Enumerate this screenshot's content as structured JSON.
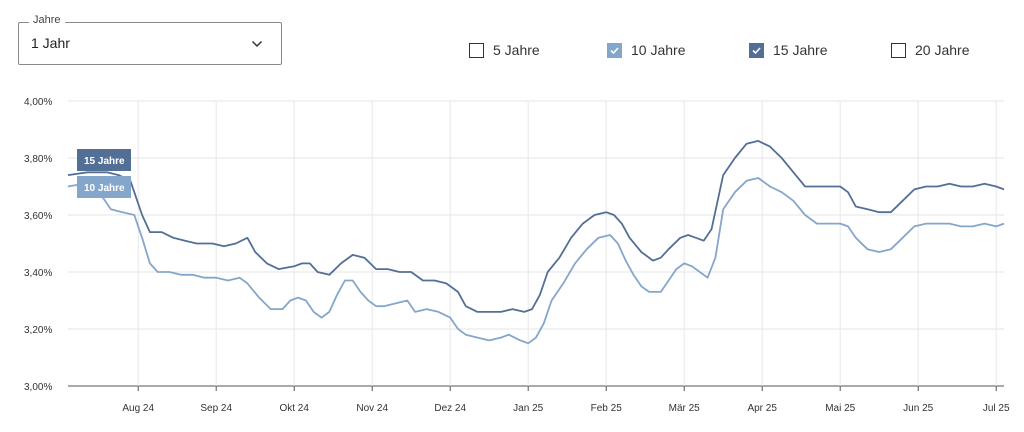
{
  "period_select": {
    "legend": "Jahre",
    "value": "1 Jahr"
  },
  "checkboxes": [
    {
      "label": "5 Jahre",
      "checked": false,
      "color": "#333333"
    },
    {
      "label": "10 Jahre",
      "checked": true,
      "color": "#85a6cb"
    },
    {
      "label": "15 Jahre",
      "checked": true,
      "color": "#546f96"
    },
    {
      "label": "20 Jahre",
      "checked": false,
      "color": "#333333"
    }
  ],
  "chart_data": {
    "type": "line",
    "title": "",
    "xlabel": "",
    "ylabel": "",
    "ylim": [
      3.0,
      4.0
    ],
    "y_ticks": [
      "3,00%",
      "3,20%",
      "3,40%",
      "3,60%",
      "3,80%",
      "4,00%"
    ],
    "x_ticks": [
      {
        "label": "Aug 24",
        "t": 0.9
      },
      {
        "label": "Sep 24",
        "t": 1.9
      },
      {
        "label": "Okt 24",
        "t": 2.9
      },
      {
        "label": "Nov 24",
        "t": 3.9
      },
      {
        "label": "Dez 24",
        "t": 4.9
      },
      {
        "label": "Jan 25",
        "t": 5.9
      },
      {
        "label": "Feb 25",
        "t": 6.9
      },
      {
        "label": "Mär 25",
        "t": 7.9
      },
      {
        "label": "Apr 25",
        "t": 8.9
      },
      {
        "label": "Mai 25",
        "t": 9.9
      },
      {
        "label": "Jun 25",
        "t": 10.9
      },
      {
        "label": "Jul 25",
        "t": 11.9
      }
    ],
    "x_range": [
      0,
      12.0
    ],
    "grid": true,
    "series": [
      {
        "name": "15 Jahre",
        "color": "#546f96",
        "points": [
          [
            0.0,
            3.74
          ],
          [
            0.25,
            3.75
          ],
          [
            0.5,
            3.75
          ],
          [
            0.65,
            3.74
          ],
          [
            0.8,
            3.72
          ],
          [
            0.95,
            3.6
          ],
          [
            1.05,
            3.54
          ],
          [
            1.2,
            3.54
          ],
          [
            1.35,
            3.52
          ],
          [
            1.5,
            3.51
          ],
          [
            1.65,
            3.5
          ],
          [
            1.85,
            3.5
          ],
          [
            2.0,
            3.49
          ],
          [
            2.15,
            3.5
          ],
          [
            2.3,
            3.52
          ],
          [
            2.4,
            3.47
          ],
          [
            2.55,
            3.43
          ],
          [
            2.7,
            3.41
          ],
          [
            2.9,
            3.42
          ],
          [
            3.0,
            3.43
          ],
          [
            3.1,
            3.43
          ],
          [
            3.2,
            3.4
          ],
          [
            3.35,
            3.39
          ],
          [
            3.5,
            3.43
          ],
          [
            3.65,
            3.46
          ],
          [
            3.8,
            3.45
          ],
          [
            3.95,
            3.41
          ],
          [
            4.1,
            3.41
          ],
          [
            4.25,
            3.4
          ],
          [
            4.4,
            3.4
          ],
          [
            4.55,
            3.37
          ],
          [
            4.7,
            3.37
          ],
          [
            4.85,
            3.36
          ],
          [
            5.0,
            3.33
          ],
          [
            5.1,
            3.28
          ],
          [
            5.25,
            3.26
          ],
          [
            5.4,
            3.26
          ],
          [
            5.55,
            3.26
          ],
          [
            5.7,
            3.27
          ],
          [
            5.85,
            3.26
          ],
          [
            5.95,
            3.27
          ],
          [
            6.05,
            3.32
          ],
          [
            6.15,
            3.4
          ],
          [
            6.3,
            3.45
          ],
          [
            6.45,
            3.52
          ],
          [
            6.6,
            3.57
          ],
          [
            6.75,
            3.6
          ],
          [
            6.9,
            3.61
          ],
          [
            7.0,
            3.6
          ],
          [
            7.1,
            3.57
          ],
          [
            7.2,
            3.52
          ],
          [
            7.35,
            3.47
          ],
          [
            7.5,
            3.44
          ],
          [
            7.6,
            3.45
          ],
          [
            7.7,
            3.48
          ],
          [
            7.85,
            3.52
          ],
          [
            7.95,
            3.53
          ],
          [
            8.05,
            3.52
          ],
          [
            8.15,
            3.51
          ],
          [
            8.25,
            3.55
          ],
          [
            8.4,
            3.74
          ],
          [
            8.55,
            3.8
          ],
          [
            8.7,
            3.85
          ],
          [
            8.85,
            3.86
          ],
          [
            9.0,
            3.84
          ],
          [
            9.15,
            3.8
          ],
          [
            9.3,
            3.75
          ],
          [
            9.45,
            3.7
          ],
          [
            9.6,
            3.7
          ],
          [
            9.75,
            3.7
          ],
          [
            9.9,
            3.7
          ],
          [
            10.0,
            3.68
          ],
          [
            10.1,
            3.63
          ],
          [
            10.25,
            3.62
          ],
          [
            10.4,
            3.61
          ],
          [
            10.55,
            3.61
          ],
          [
            10.7,
            3.65
          ],
          [
            10.85,
            3.69
          ],
          [
            11.0,
            3.7
          ],
          [
            11.15,
            3.7
          ],
          [
            11.3,
            3.71
          ],
          [
            11.45,
            3.7
          ],
          [
            11.6,
            3.7
          ],
          [
            11.75,
            3.71
          ],
          [
            11.9,
            3.7
          ],
          [
            12.0,
            3.69
          ]
        ]
      },
      {
        "name": "10 Jahre",
        "color": "#85a6cb",
        "points": [
          [
            0.0,
            3.7
          ],
          [
            0.2,
            3.71
          ],
          [
            0.4,
            3.68
          ],
          [
            0.55,
            3.62
          ],
          [
            0.7,
            3.61
          ],
          [
            0.85,
            3.6
          ],
          [
            0.95,
            3.52
          ],
          [
            1.05,
            3.43
          ],
          [
            1.15,
            3.4
          ],
          [
            1.3,
            3.4
          ],
          [
            1.45,
            3.39
          ],
          [
            1.6,
            3.39
          ],
          [
            1.75,
            3.38
          ],
          [
            1.9,
            3.38
          ],
          [
            2.05,
            3.37
          ],
          [
            2.2,
            3.38
          ],
          [
            2.3,
            3.36
          ],
          [
            2.45,
            3.31
          ],
          [
            2.6,
            3.27
          ],
          [
            2.75,
            3.27
          ],
          [
            2.85,
            3.3
          ],
          [
            2.95,
            3.31
          ],
          [
            3.05,
            3.3
          ],
          [
            3.15,
            3.26
          ],
          [
            3.25,
            3.24
          ],
          [
            3.35,
            3.26
          ],
          [
            3.45,
            3.32
          ],
          [
            3.55,
            3.37
          ],
          [
            3.65,
            3.37
          ],
          [
            3.75,
            3.33
          ],
          [
            3.85,
            3.3
          ],
          [
            3.95,
            3.28
          ],
          [
            4.05,
            3.28
          ],
          [
            4.2,
            3.29
          ],
          [
            4.35,
            3.3
          ],
          [
            4.45,
            3.26
          ],
          [
            4.6,
            3.27
          ],
          [
            4.75,
            3.26
          ],
          [
            4.9,
            3.24
          ],
          [
            5.0,
            3.2
          ],
          [
            5.1,
            3.18
          ],
          [
            5.25,
            3.17
          ],
          [
            5.4,
            3.16
          ],
          [
            5.55,
            3.17
          ],
          [
            5.65,
            3.18
          ],
          [
            5.8,
            3.16
          ],
          [
            5.9,
            3.15
          ],
          [
            6.0,
            3.17
          ],
          [
            6.1,
            3.22
          ],
          [
            6.2,
            3.3
          ],
          [
            6.35,
            3.36
          ],
          [
            6.5,
            3.43
          ],
          [
            6.65,
            3.48
          ],
          [
            6.8,
            3.52
          ],
          [
            6.95,
            3.53
          ],
          [
            7.05,
            3.5
          ],
          [
            7.15,
            3.44
          ],
          [
            7.25,
            3.39
          ],
          [
            7.35,
            3.35
          ],
          [
            7.45,
            3.33
          ],
          [
            7.6,
            3.33
          ],
          [
            7.7,
            3.37
          ],
          [
            7.8,
            3.41
          ],
          [
            7.9,
            3.43
          ],
          [
            8.0,
            3.42
          ],
          [
            8.1,
            3.4
          ],
          [
            8.2,
            3.38
          ],
          [
            8.3,
            3.45
          ],
          [
            8.4,
            3.62
          ],
          [
            8.55,
            3.68
          ],
          [
            8.7,
            3.72
          ],
          [
            8.85,
            3.73
          ],
          [
            9.0,
            3.7
          ],
          [
            9.15,
            3.68
          ],
          [
            9.3,
            3.65
          ],
          [
            9.45,
            3.6
          ],
          [
            9.6,
            3.57
          ],
          [
            9.75,
            3.57
          ],
          [
            9.9,
            3.57
          ],
          [
            10.0,
            3.56
          ],
          [
            10.1,
            3.52
          ],
          [
            10.25,
            3.48
          ],
          [
            10.4,
            3.47
          ],
          [
            10.55,
            3.48
          ],
          [
            10.7,
            3.52
          ],
          [
            10.85,
            3.56
          ],
          [
            11.0,
            3.57
          ],
          [
            11.15,
            3.57
          ],
          [
            11.3,
            3.57
          ],
          [
            11.45,
            3.56
          ],
          [
            11.6,
            3.56
          ],
          [
            11.75,
            3.57
          ],
          [
            11.9,
            3.56
          ],
          [
            12.0,
            3.57
          ]
        ]
      }
    ]
  }
}
